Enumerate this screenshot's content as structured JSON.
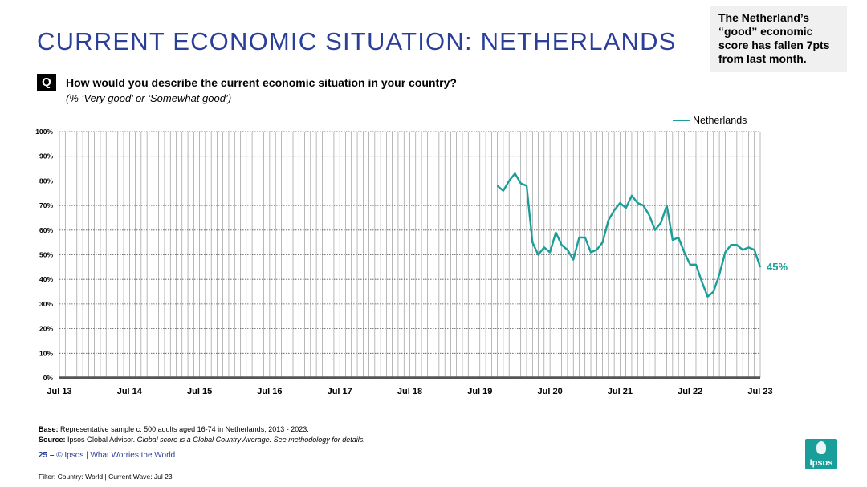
{
  "header": {
    "title": "CURRENT ECONOMIC SITUATION: NETHERLANDS"
  },
  "callout": {
    "text": "The Netherland’s “good” economic score has fallen 7pts from last month."
  },
  "question": {
    "badge": "Q",
    "text": "How would you describe the current economic situation in your country?",
    "subtext": "(% ‘Very good’ or ‘Somewhat good’)"
  },
  "chart_data": {
    "type": "line",
    "x_tick_labels": [
      "Jul 13",
      "Jul 14",
      "Jul 15",
      "Jul 16",
      "Jul 17",
      "Jul 18",
      "Jul 19",
      "Jul 20",
      "Jul 21",
      "Jul 22",
      "Jul 23"
    ],
    "y_tick_labels": [
      "0%",
      "10%",
      "20%",
      "30%",
      "40%",
      "50%",
      "60%",
      "70%",
      "80%",
      "90%",
      "100%"
    ],
    "ylim": [
      0,
      100
    ],
    "grid": true,
    "legend": "top-right",
    "series": [
      {
        "name": "Netherlands",
        "color": "#1a9e99",
        "start_month": "2019-10",
        "values": [
          78,
          76,
          80,
          83,
          79,
          78,
          55,
          50,
          53,
          51,
          59,
          54,
          52,
          48,
          57,
          57,
          51,
          52,
          55,
          64,
          68,
          71,
          69,
          74,
          71,
          70,
          66,
          60,
          63,
          70,
          56,
          57,
          51,
          46,
          46,
          39,
          33,
          35,
          42,
          51,
          54,
          54,
          52,
          53,
          52,
          45
        ]
      }
    ],
    "end_label": "45%"
  },
  "footer": {
    "base_label": "Base:",
    "base_text": "Representative sample c. 500 adults aged 16-74 in Netherlands, 2013 - 2023.",
    "source_label": "Source:",
    "source_text": "Ipsos Global Advisor.",
    "source_note": "Global score is a Global Country Average. See methodology for details.",
    "page_number": "25",
    "page_sep": " – ",
    "copyright": "© Ipsos | What Worries the World",
    "filter": "Filter: Country: World | Current Wave: Jul 23"
  },
  "logo": {
    "text": "Ipsos",
    "color": "#1a9e99"
  }
}
